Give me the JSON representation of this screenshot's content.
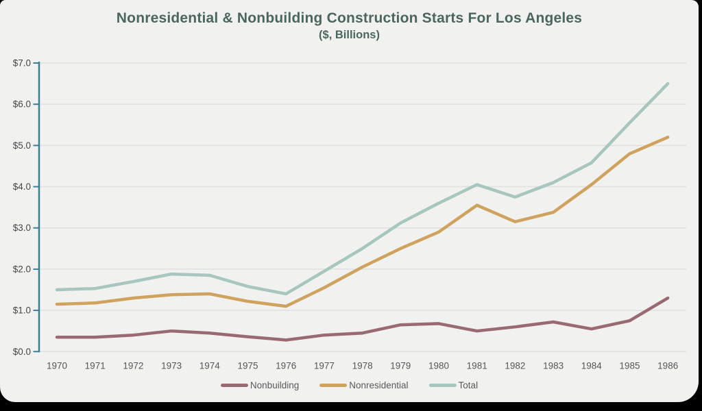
{
  "frame": {
    "canvas_background": "#f1f1f0",
    "border_background": "#000000"
  },
  "chart_data": {
    "type": "line",
    "title": "Nonresidential & Nonbuilding Construction Starts For Los Angeles",
    "subtitle": "($, Billions)",
    "title_color": "#4a665e",
    "x": [
      1970,
      1971,
      1972,
      1973,
      1974,
      1975,
      1976,
      1977,
      1978,
      1979,
      1980,
      1981,
      1982,
      1983,
      1984,
      1985,
      1986
    ],
    "y_tick_labels": [
      "$0.0",
      "$1.0",
      "$2.0",
      "$3.0",
      "$4.0",
      "$5.0",
      "$6.0",
      "$7.0"
    ],
    "ylim": [
      0,
      7
    ],
    "grid": true,
    "gridline_color": "#e0e0e0",
    "axis_color": "#3f7d93",
    "tick_label_color": "#454545",
    "x_label_color": "#565656",
    "legend_position": "bottom",
    "series": [
      {
        "name": "Nonbuilding",
        "color": "#9a6a72",
        "values": [
          0.35,
          0.35,
          0.4,
          0.5,
          0.45,
          0.36,
          0.28,
          0.4,
          0.45,
          0.65,
          0.68,
          0.5,
          0.6,
          0.72,
          0.55,
          0.75,
          1.3
        ]
      },
      {
        "name": "Nonresidential",
        "color": "#cfa25e",
        "values": [
          1.15,
          1.18,
          1.3,
          1.38,
          1.4,
          1.22,
          1.1,
          1.55,
          2.05,
          2.5,
          2.9,
          3.55,
          3.15,
          3.38,
          4.05,
          4.8,
          5.2
        ]
      },
      {
        "name": "Total",
        "color": "#a6c6be",
        "values": [
          1.5,
          1.53,
          1.7,
          1.88,
          1.85,
          1.58,
          1.4,
          1.95,
          2.5,
          3.12,
          3.6,
          4.05,
          3.75,
          4.1,
          4.58,
          5.55,
          6.5
        ]
      }
    ]
  }
}
